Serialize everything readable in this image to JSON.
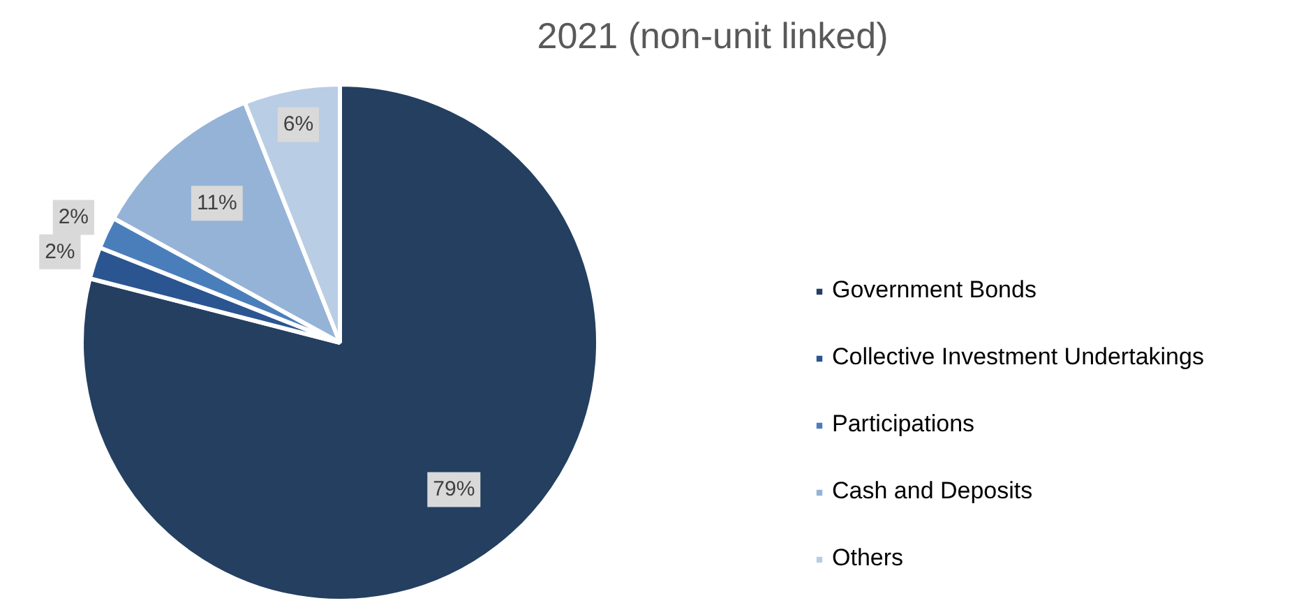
{
  "chart_data": {
    "type": "pie",
    "title": "2021 (non-unit linked)",
    "categories": [
      "Government Bonds",
      "Collective Investment Undertakings",
      "Participations",
      "Cash and Deposits",
      "Others"
    ],
    "values": [
      79,
      2,
      2,
      11,
      6
    ],
    "colors": [
      "#243f60",
      "#2b5590",
      "#4a7ebb",
      "#95b3d7",
      "#b9cde5"
    ],
    "value_labels": [
      "79%",
      "2%",
      "2%",
      "11%",
      "6%"
    ],
    "legend": "right"
  }
}
